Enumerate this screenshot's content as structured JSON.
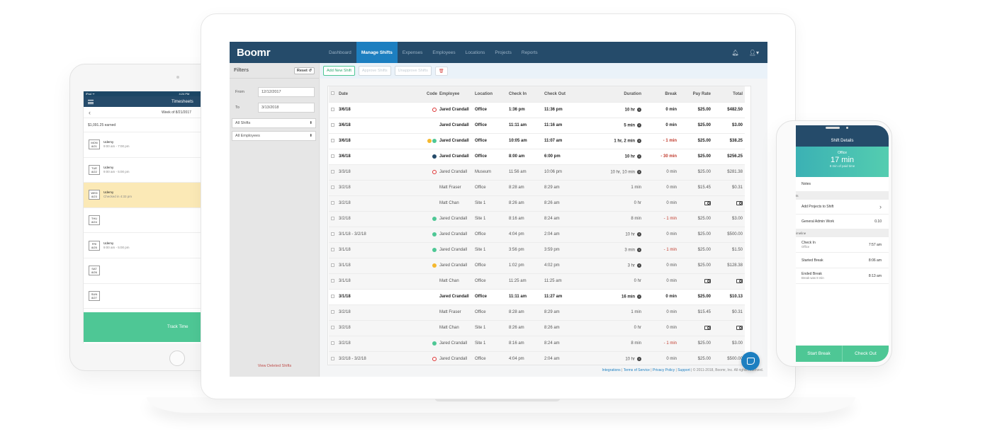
{
  "tablet": {
    "status_left": "iPad ᯤ",
    "status_time": "4:24 PM",
    "title": "Timesheets",
    "week_label": "Week of 8/21/2017",
    "earned": "$1,091.25 earned",
    "days": [
      {
        "day": "MON",
        "date": "8/21",
        "company": "Udemy",
        "hours": "9:00 am - 7:00 pm"
      },
      {
        "day": "TUE",
        "date": "8/22",
        "company": "Udemy",
        "hours": "9:00 am - 5:00 pm"
      },
      {
        "day": "WED",
        "date": "8/23",
        "company": "Udemy",
        "hours": "Checked in 4:33 pm"
      },
      {
        "day": "THU",
        "date": "8/24",
        "company": "",
        "hours": ""
      },
      {
        "day": "FRI",
        "date": "8/25",
        "company": "Udemy",
        "hours": "9:00 am - 5:00 pm"
      },
      {
        "day": "SAT",
        "date": "8/26",
        "company": "",
        "hours": ""
      },
      {
        "day": "SUN",
        "date": "8/27",
        "company": "",
        "hours": ""
      }
    ],
    "track_label": "Track Time"
  },
  "app": {
    "logo": "Boomr",
    "nav": [
      "Dashboard",
      "Manage Shifts",
      "Expenses",
      "Employees",
      "Locations",
      "Projects",
      "Reports"
    ],
    "filters": {
      "title": "Filters",
      "reset": "Reset",
      "from_label": "From",
      "from_value": "12/12/2017",
      "to_label": "To",
      "to_value": "3/13/2018",
      "shifts_select": "All Shifts",
      "employees_select": "All Employees",
      "deleted_link": "View Deleted Shifts"
    },
    "toolbar": {
      "add": "Add New Shift",
      "approve": "Approve Shifts",
      "unapprove": "Unapprove Shifts",
      "delete_icon": "trash-icon"
    },
    "columns": [
      "Date",
      "Code",
      "Employee",
      "Location",
      "Check In",
      "Check Out",
      "Duration",
      "Break",
      "Pay Rate",
      "Total"
    ],
    "rows": [
      {
        "date": "3/6/18",
        "code": [
          "red"
        ],
        "employee": "Jared Crandall",
        "location": "Office",
        "in": "1:36 pm",
        "out": "11:36 pm",
        "duration": "10 hr",
        "info": true,
        "break": "0 min",
        "rate": "$25.00",
        "total": "$482.50",
        "bold": true
      },
      {
        "date": "3/6/18",
        "code": [],
        "employee": "Jared Crandall",
        "location": "Office",
        "in": "11:11 am",
        "out": "11:16 am",
        "duration": "5 min",
        "info": true,
        "break": "0 min",
        "rate": "$25.00",
        "total": "$3.00",
        "bold": true
      },
      {
        "date": "3/6/18",
        "code": [
          "yellow",
          "green"
        ],
        "employee": "Jared Crandall",
        "location": "Office",
        "in": "10:05 am",
        "out": "11:07 am",
        "duration": "1 hr, 2 min",
        "info": true,
        "break": "- 1 min",
        "rate": "$25.00",
        "total": "$38.25",
        "bold": true,
        "neg": true
      },
      {
        "date": "3/6/18",
        "code": [
          "navy"
        ],
        "employee": "Jared Crandall",
        "location": "Office",
        "in": "8:00 am",
        "out": "6:00 pm",
        "duration": "10 hr",
        "info": true,
        "break": "- 30 min",
        "rate": "$25.00",
        "total": "$256.25",
        "bold": true,
        "neg": true
      },
      {
        "date": "3/3/18",
        "code": [
          "red"
        ],
        "employee": "Jared Crandall",
        "location": "Museum",
        "in": "11:56 am",
        "out": "10:06 pm",
        "duration": "10 hr, 10 min",
        "info": true,
        "break": "0 min",
        "rate": "$25.00",
        "total": "$281.38"
      },
      {
        "date": "3/2/18",
        "code": [],
        "employee": "Matt Fraser",
        "location": "Office",
        "in": "8:28 am",
        "out": "8:29 am",
        "duration": "1 min",
        "info": false,
        "break": "0 min",
        "rate": "$15.45",
        "total": "$0.31"
      },
      {
        "date": "3/2/18",
        "code": [],
        "employee": "Matt Chan",
        "location": "Site 1",
        "in": "8:26 am",
        "out": "8:26 am",
        "duration": "0 hr",
        "info": false,
        "break": "0 min",
        "rate": "cash",
        "total": "cash"
      },
      {
        "date": "3/2/18",
        "code": [
          "green"
        ],
        "employee": "Jared Crandall",
        "location": "Site 1",
        "in": "8:16 am",
        "out": "8:24 am",
        "duration": "8 min",
        "info": false,
        "break": "- 1 min",
        "rate": "$25.00",
        "total": "$3.00",
        "neg": true
      },
      {
        "date": "3/1/18 - 3/2/18",
        "code": [
          "green"
        ],
        "employee": "Jared Crandall",
        "location": "Office",
        "in": "4:04 pm",
        "out": "2:04 am",
        "duration": "10 hr",
        "info": true,
        "break": "0 min",
        "rate": "$25.00",
        "total": "$500.00"
      },
      {
        "date": "3/1/18",
        "code": [
          "green"
        ],
        "employee": "Jared Crandall",
        "location": "Site 1",
        "in": "3:56 pm",
        "out": "3:59 pm",
        "duration": "3 min",
        "info": true,
        "break": "- 1 min",
        "rate": "$25.00",
        "total": "$1.50",
        "neg": true
      },
      {
        "date": "3/1/18",
        "code": [
          "yellow"
        ],
        "employee": "Jared Crandall",
        "location": "Office",
        "in": "1:02 pm",
        "out": "4:02 pm",
        "duration": "3 hr",
        "info": true,
        "break": "0 min",
        "rate": "$25.00",
        "total": "$128.38"
      },
      {
        "date": "3/1/18",
        "code": [],
        "employee": "Matt Chan",
        "location": "Office",
        "in": "11:25 am",
        "out": "11:25 am",
        "duration": "0 hr",
        "info": false,
        "break": "0 min",
        "rate": "cash",
        "total": "cash"
      },
      {
        "date": "3/1/18",
        "code": [],
        "employee": "Jared Crandall",
        "location": "Office",
        "in": "11:11 am",
        "out": "11:27 am",
        "duration": "16 min",
        "info": true,
        "break": "0 min",
        "rate": "$25.00",
        "total": "$10.13",
        "bold": true
      },
      {
        "date": "3/2/18",
        "code": [],
        "employee": "Matt Fraser",
        "location": "Office",
        "in": "8:28 am",
        "out": "8:29 am",
        "duration": "1 min",
        "info": false,
        "break": "0 min",
        "rate": "$15.45",
        "total": "$0.31"
      },
      {
        "date": "3/2/18",
        "code": [],
        "employee": "Matt Chan",
        "location": "Site 1",
        "in": "8:26 am",
        "out": "8:26 am",
        "duration": "0 hr",
        "info": false,
        "break": "0 min",
        "rate": "cash",
        "total": "cash"
      },
      {
        "date": "3/2/18",
        "code": [
          "green"
        ],
        "employee": "Jared Crandall",
        "location": "Site 1",
        "in": "8:16 am",
        "out": "8:24 am",
        "duration": "8 min",
        "info": false,
        "break": "- 1 min",
        "rate": "$25.00",
        "total": "$3.00",
        "neg": true
      },
      {
        "date": "3/2/18 - 3/2/18",
        "code": [
          "red"
        ],
        "employee": "Jared Crandall",
        "location": "Office",
        "in": "4:04 pm",
        "out": "2:04 am",
        "duration": "10 hr",
        "info": true,
        "break": "0 min",
        "rate": "$25.00",
        "total": "$500.00"
      }
    ],
    "footer": {
      "links": [
        "Integrations",
        "Terms of Service",
        "Privacy Policy",
        "Support"
      ],
      "copyright": "© 2011-2018, Boomr, Inc. All rights reserved."
    }
  },
  "phone": {
    "title": "Shift Details",
    "location": "Office",
    "duration": "17 min",
    "paid": "8 min of paid time",
    "notes": "Notes",
    "projects_section": "ts",
    "add_projects": "Add Projects to Shift",
    "project_name": "General Admin Work",
    "project_value": "0.10",
    "timeline_section": "imeline",
    "timeline": [
      {
        "label": "Check In",
        "sub": "Office",
        "time": "7:57 am"
      },
      {
        "label": "Started Break",
        "sub": "",
        "time": "8:06 am"
      },
      {
        "label": "Ended Break",
        "sub": "Break was 8 min",
        "time": "8:13 am"
      }
    ],
    "start_break": "Start Break",
    "check_out": "Check Out"
  }
}
